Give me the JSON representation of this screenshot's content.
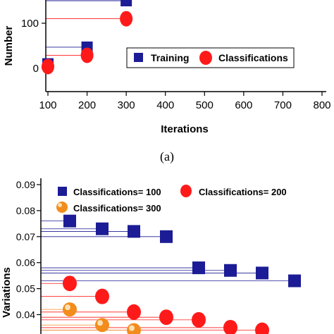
{
  "panel_caption": "(a)",
  "chart_data": [
    {
      "type": "scatter",
      "title": "",
      "xlabel": "Iterations",
      "ylabel": "Number",
      "x_ticks": [
        100,
        200,
        300,
        400,
        500,
        600,
        700,
        800
      ],
      "y_ticks": [
        0,
        100
      ],
      "xlim": [
        95,
        810
      ],
      "ylim": [
        -25,
        240
      ],
      "legend_placement": "bottom-right",
      "grid": false,
      "series": [
        {
          "name": "Training",
          "marker": "square",
          "color": "#1c1c96",
          "points": [
            [
              100,
              10
            ],
            [
              200,
              47
            ],
            [
              300,
              150
            ]
          ]
        },
        {
          "name": "Classifications",
          "marker": "circle",
          "color": "#ff1a1a",
          "points": [
            [
              100,
              4
            ],
            [
              200,
              29
            ],
            [
              300,
              110
            ]
          ]
        }
      ]
    },
    {
      "type": "scatter",
      "title": "",
      "xlabel": "",
      "ylabel": "Variations",
      "y_ticks": [
        0.04,
        0.05,
        0.06,
        0.07,
        0.08,
        0.09
      ],
      "ylim": [
        0.033,
        0.091
      ],
      "legend_placement": "top",
      "grid": false,
      "series": [
        {
          "name": "Classifications= 100",
          "marker": "square",
          "color": "#1c1c96",
          "values": [
            0.076,
            0.073,
            0.072,
            0.07,
            0.058,
            0.057,
            0.056,
            0.053
          ]
        },
        {
          "name": "Classifications= 200",
          "marker": "circle",
          "color": "#ff1a1a",
          "values": [
            0.052,
            0.047,
            0.041,
            0.039,
            0.038,
            0.035,
            0.034
          ]
        },
        {
          "name": "Classifications= 300",
          "marker": "sphere",
          "color": "#f28c1c",
          "values": [
            0.042,
            0.036,
            0.034
          ]
        }
      ]
    }
  ]
}
